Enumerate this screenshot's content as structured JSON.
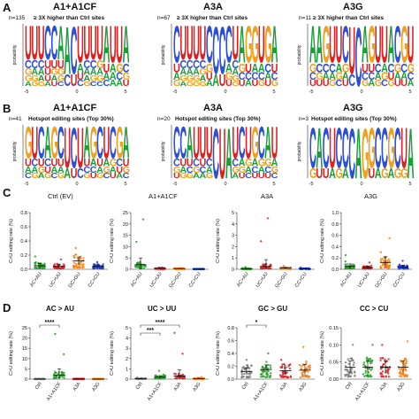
{
  "panels": {
    "A": {
      "letter": "A",
      "logos": [
        {
          "title": "A1+A1CF",
          "n": "n=135",
          "subtitle": "≥ 3X higher than Ctrl sites",
          "ylabel": "probability",
          "xticks": [
            "-5",
            "0",
            "5"
          ],
          "columns": [
            "UCGGA",
            "UCAGG",
            "UCAAG",
            "CUUUA",
            "CUGAU",
            "AUGGC",
            "AC",
            "CU",
            "UAUC",
            "UCAAG",
            "UCAGC",
            "UGAGC",
            "AUAC",
            "UAAA",
            "UGCA",
            "ACGU"
          ]
        },
        {
          "title": "A3A",
          "n": "n=67",
          "subtitle": "≥ 3X higher than Ctrl sites",
          "ylabel": "probability",
          "xticks": [
            "-5",
            "0",
            "5"
          ],
          "columns": [
            "CUAG",
            "UCAGA",
            "UCAGG",
            "UCAGG",
            "UCGAG",
            "CGUA",
            "CA",
            "CU",
            "CAGU",
            "UCAGG",
            "AGCU",
            "GUCA",
            "GACU",
            "UACG",
            "GCAU",
            "AUCG"
          ]
        },
        {
          "title": "A3G",
          "n": "n=11",
          "subtitle": "≥ 3X higher than Ctrl sites",
          "ylabel": "probability",
          "xticks": [
            "-5",
            "0",
            "5"
          ],
          "columns": [
            "AGCU",
            "ACGU",
            "GCAU",
            "UCAG",
            "UAGC",
            "CGAU",
            "UC",
            "C",
            "AUCG",
            "GUCA",
            "UCAG",
            "UAGC",
            "ACUG",
            "CGAU",
            "GCAU",
            "UGCA"
          ]
        }
      ]
    },
    "B": {
      "letter": "B",
      "logos": [
        {
          "title": "A1+A1CF",
          "n": "n=41",
          "subtitle": "Hotspot editing sites (Top 30%)",
          "ylabel": "probability",
          "xticks": [
            "-5",
            "0",
            "5"
          ],
          "columns": [
            "GUAC",
            "UCAG",
            "CUGA",
            "ACUG",
            "GUAC",
            "CUAG",
            "UA",
            "CU",
            "UC",
            "AUCG",
            "GACU",
            "CUAG",
            "UAGC",
            "CGAU",
            "GCUA",
            "AUGC"
          ]
        },
        {
          "title": "A3A",
          "n": "n=20",
          "subtitle": "Hotspot editing sites (Top 30%)",
          "ylabel": "probability",
          "xticks": [
            "-5",
            "0",
            "5"
          ],
          "columns": [
            "CCGU",
            "CUAG",
            "AUCG",
            "UCGA",
            "UUCA",
            "UCAG",
            "C",
            "U",
            "A",
            "UCGA",
            "CAGU",
            "UGAC",
            "GACU",
            "CGAU",
            "AGCU",
            "UAGC"
          ]
        },
        {
          "title": "A3G",
          "n": "n=3",
          "subtitle": "Hotspot editing sites (Top 30%)",
          "ylabel": "probability",
          "xticks": [
            "-5",
            "0",
            "5"
          ],
          "columns": [
            "CG",
            "AU",
            "CU",
            "UA",
            "CG",
            "CA",
            "C",
            "A",
            "G",
            "GU",
            "CA",
            "CG",
            "GA",
            "CG",
            "UG",
            "A"
          ]
        }
      ]
    },
    "C": {
      "letter": "C",
      "ylabel": "C>U editing rate (%)",
      "categories": [
        "AC>AU",
        "UC>UU",
        "GC>GU",
        "CC>CU"
      ],
      "colors": [
        "#2ca02c",
        "#d62728",
        "#ff7f0e",
        "#1f3fbf"
      ],
      "chart_data": [
        {
          "type": "scatter",
          "title": "Ctrl (EV)",
          "ylim": [
            0,
            0.8
          ],
          "yticks": [
            "0.0",
            "0.2",
            "0.4",
            "0.6",
            "0.8"
          ],
          "categories": [
            "AC>AU",
            "UC>UU",
            "GC>GU",
            "CC>CU"
          ],
          "means": [
            0.05,
            0.04,
            0.12,
            0.04
          ],
          "maxes": [
            0.18,
            0.14,
            0.3,
            0.1
          ]
        },
        {
          "type": "scatter",
          "title": "A1+A1CF",
          "ylim": [
            0,
            25
          ],
          "yticks": [
            "0",
            "5",
            "10",
            "15",
            "20",
            "25"
          ],
          "categories": [
            "AC>AU",
            "UC>UU",
            "GC>GU",
            "CC>CU"
          ],
          "means": [
            2.0,
            0.4,
            0.3,
            0.1
          ],
          "maxes": [
            22.0,
            0.8,
            0.5,
            0.2
          ]
        },
        {
          "type": "scatter",
          "title": "A3A",
          "ylim": [
            0,
            5
          ],
          "yticks": [
            "0",
            "1",
            "2",
            "3",
            "4",
            "5"
          ],
          "categories": [
            "AC>AU",
            "UC>UU",
            "GC>GU",
            "CC>CU"
          ],
          "means": [
            0.05,
            0.25,
            0.1,
            0.05
          ],
          "maxes": [
            0.2,
            4.5,
            0.3,
            0.15
          ]
        },
        {
          "type": "scatter",
          "title": "A3G",
          "ylim": [
            0,
            1.0
          ],
          "yticks": [
            "0.0",
            "0.2",
            "0.4",
            "0.6",
            "0.8",
            "1.0"
          ],
          "categories": [
            "AC>AU",
            "UC>UU",
            "GC>GU",
            "CC>CU"
          ],
          "means": [
            0.05,
            0.03,
            0.12,
            0.04
          ],
          "maxes": [
            0.25,
            0.12,
            0.55,
            0.15
          ]
        }
      ]
    },
    "D": {
      "letter": "D",
      "ylabel": "C>U editing rate (%)",
      "categories": [
        "Ctrl",
        "A1+A1CF",
        "A3A",
        "A3G"
      ],
      "colors": [
        "#7f7f7f",
        "#2ca02c",
        "#d62728",
        "#ff7f0e"
      ],
      "chart_data": [
        {
          "type": "scatter",
          "title": "AC > AU",
          "ylim": [
            0,
            25
          ],
          "yticks": [
            "0",
            "5",
            "10",
            "15",
            "20",
            "25"
          ],
          "categories": [
            "Ctrl",
            "A1+A1CF",
            "A3A",
            "A3G"
          ],
          "means": [
            0.05,
            2.0,
            0.1,
            0.05
          ],
          "maxes": [
            0.2,
            22.0,
            0.3,
            0.2
          ],
          "sig": [
            {
              "from": 0,
              "to": 1,
              "label": "****"
            }
          ]
        },
        {
          "type": "scatter",
          "title": "UC > UU",
          "ylim": [
            0,
            5
          ],
          "yticks": [
            "0",
            "1",
            "2",
            "3",
            "4",
            "5"
          ],
          "categories": [
            "Ctrl",
            "A1+A1CF",
            "A3A",
            "A3G"
          ],
          "means": [
            0.05,
            0.2,
            0.3,
            0.05
          ],
          "maxes": [
            0.15,
            0.8,
            4.5,
            0.2
          ],
          "sig": [
            {
              "from": 0,
              "to": 2,
              "label": "****"
            },
            {
              "from": 0,
              "to": 1,
              "label": "***"
            }
          ]
        },
        {
          "type": "scatter",
          "title": "GC > GU",
          "ylim": [
            0,
            0.8
          ],
          "yticks": [
            "0.0",
            "0.2",
            "0.4",
            "0.6",
            "0.8"
          ],
          "categories": [
            "Ctrl",
            "A1+A1CF",
            "A3A",
            "A3G"
          ],
          "means": [
            0.12,
            0.15,
            0.13,
            0.14
          ],
          "maxes": [
            0.3,
            0.4,
            0.3,
            0.5
          ],
          "sig": [
            {
              "from": 0,
              "to": 1,
              "label": "*"
            }
          ]
        },
        {
          "type": "scatter",
          "title": "CC > CU",
          "ylim": [
            0,
            0.15
          ],
          "yticks": [
            "0.00",
            "0.05",
            "0.10",
            "0.15"
          ],
          "categories": [
            "Ctrl",
            "A1+A1CF",
            "A3A",
            "A3G"
          ],
          "means": [
            0.035,
            0.035,
            0.035,
            0.035
          ],
          "maxes": [
            0.1,
            0.1,
            0.1,
            0.11
          ],
          "sig": []
        }
      ]
    }
  },
  "nucleotide_colors": {
    "A": "#1a9e3a",
    "C": "#2b4fd6",
    "G": "#f0a020",
    "U": "#e02020"
  }
}
